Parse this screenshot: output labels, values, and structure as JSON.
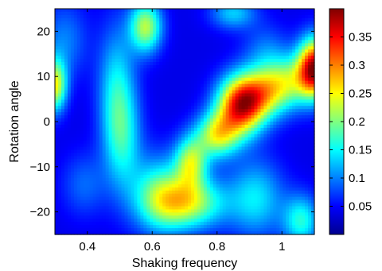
{
  "chart_data": {
    "type": "heatmap",
    "title": "",
    "xlabel": "Shaking frequency",
    "ylabel": "Rotation angle",
    "xlim": [
      0.3,
      1.1
    ],
    "ylim": [
      -25,
      25
    ],
    "x_ticks": [
      0.4,
      0.6,
      0.8,
      1.0
    ],
    "x_tick_labels": [
      "0.4",
      "0.6",
      "0.8",
      "1"
    ],
    "y_ticks": [
      -20,
      -10,
      0,
      10,
      20
    ],
    "y_tick_labels": [
      "−20",
      "−10",
      "0",
      "10",
      "20"
    ],
    "colormap": "jet",
    "colorbar": {
      "clim": [
        0.0,
        0.4
      ],
      "ticks": [
        0.05,
        0.1,
        0.15,
        0.2,
        0.25,
        0.3,
        0.35
      ],
      "tick_labels": [
        "0.05",
        "0.1",
        "0.15",
        "0.2",
        "0.25",
        "0.3",
        "0.35"
      ]
    },
    "background_value": 0.04,
    "hotspots": [
      {
        "x": 0.87,
        "y": 3,
        "value": 0.26,
        "sx": 0.05,
        "sy": 4.5
      },
      {
        "x": 0.8,
        "y": -3,
        "value": 0.18,
        "sx": 0.045,
        "sy": 3.5
      },
      {
        "x": 0.93,
        "y": 6,
        "value": 0.17,
        "sx": 0.06,
        "sy": 4
      },
      {
        "x": 1.1,
        "y": 12,
        "value": 0.32,
        "sx": 0.035,
        "sy": 4.5
      },
      {
        "x": 1.02,
        "y": 9,
        "value": 0.14,
        "sx": 0.06,
        "sy": 4
      },
      {
        "x": 0.72,
        "y": -9,
        "value": 0.17,
        "sx": 0.035,
        "sy": 4
      },
      {
        "x": 0.71,
        "y": -18,
        "value": 0.18,
        "sx": 0.08,
        "sy": 4
      },
      {
        "x": 0.62,
        "y": -16,
        "value": 0.12,
        "sx": 0.06,
        "sy": 6
      },
      {
        "x": 0.58,
        "y": 21,
        "value": 0.18,
        "sx": 0.035,
        "sy": 4
      },
      {
        "x": 0.49,
        "y": 7,
        "value": 0.1,
        "sx": 0.04,
        "sy": 10
      },
      {
        "x": 0.51,
        "y": -4,
        "value": 0.09,
        "sx": 0.04,
        "sy": 8
      },
      {
        "x": 0.3,
        "y": 8,
        "value": 0.2,
        "sx": 0.025,
        "sy": 4
      },
      {
        "x": 0.33,
        "y": 18,
        "value": 0.06,
        "sx": 0.05,
        "sy": 6
      },
      {
        "x": 0.39,
        "y": -14,
        "value": 0.05,
        "sx": 0.05,
        "sy": 5
      },
      {
        "x": 0.85,
        "y": 24,
        "value": 0.09,
        "sx": 0.05,
        "sy": 2.5
      },
      {
        "x": 0.92,
        "y": -17,
        "value": 0.1,
        "sx": 0.06,
        "sy": 6
      },
      {
        "x": 1.06,
        "y": -22,
        "value": 0.12,
        "sx": 0.04,
        "sy": 4
      },
      {
        "x": 0.95,
        "y": 16,
        "value": 0.05,
        "sx": 0.05,
        "sy": 4
      }
    ]
  }
}
